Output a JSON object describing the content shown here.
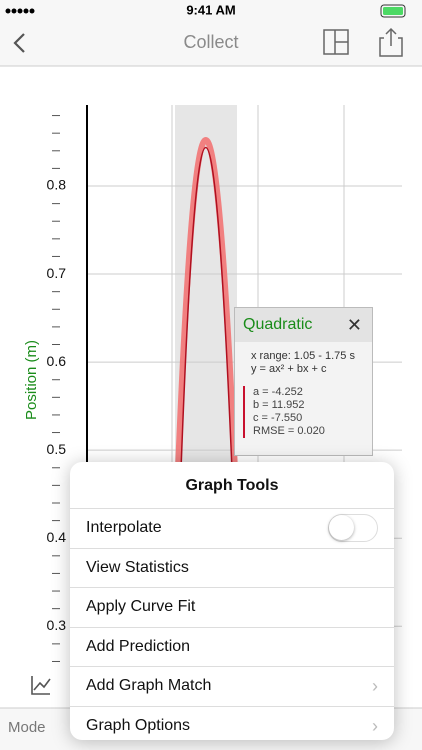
{
  "status_bar": {
    "time": "9:41 AM"
  },
  "nav": {
    "title": "Collect"
  },
  "graph": {
    "y_label": "Position (m)",
    "ylim": [
      0.256,
      0.892
    ],
    "yticks": [
      0.3,
      0.4,
      0.5,
      0.6,
      0.7,
      0.8
    ]
  },
  "curve_fit": {
    "title": "Quadratic",
    "x_range": "x range: 1.05 - 1.75 s",
    "equation": "y = ax² + bx + c",
    "params": [
      "a = -4.252",
      "b = 11.952",
      "c = -7.550",
      "RMSE = 0.020"
    ]
  },
  "graph_tools": {
    "title": "Graph Tools",
    "items": [
      "Interpolate",
      "View Statistics",
      "Apply Curve Fit",
      "Add Prediction",
      "Add Graph Match",
      "Graph Options"
    ]
  },
  "toolbar": {
    "mode": "Mode"
  }
}
